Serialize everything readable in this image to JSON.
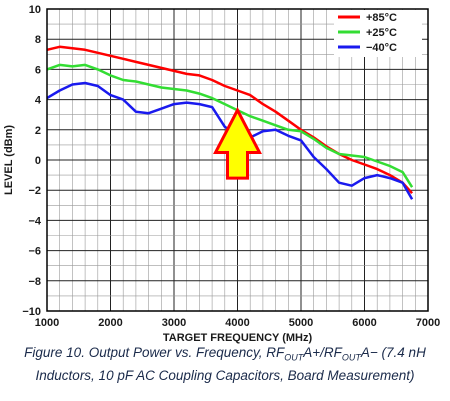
{
  "chart_data": {
    "type": "line",
    "xlabel": "TARGET FREQUENCY (MHz)",
    "ylabel": "LEVEL (dBm)",
    "xlim": [
      1000,
      7000
    ],
    "ylim": [
      -10,
      10
    ],
    "x_ticks": [
      "1000",
      "2000",
      "3000",
      "4000",
      "5000",
      "6000",
      "7000"
    ],
    "y_ticks": [
      "10",
      "8",
      "6",
      "4",
      "2",
      "0",
      "−2",
      "−4",
      "−6",
      "−8",
      "−10"
    ],
    "grid": true,
    "legend_position": "top-right",
    "annotation": "yellow arrow with red outline pointing up at ~4000 MHz",
    "series": [
      {
        "name": "+85°C",
        "color": "#ff0000",
        "x": [
          1000,
          1200,
          1400,
          1600,
          1800,
          2000,
          2200,
          2400,
          2600,
          2800,
          3000,
          3200,
          3400,
          3600,
          3800,
          4000,
          4200,
          4400,
          4600,
          4800,
          5000,
          5200,
          5400,
          5600,
          5800,
          6000,
          6200,
          6400,
          6600,
          6750
        ],
        "values": [
          7.3,
          7.5,
          7.4,
          7.3,
          7.1,
          6.9,
          6.7,
          6.5,
          6.3,
          6.1,
          5.9,
          5.7,
          5.6,
          5.3,
          4.9,
          4.6,
          4.3,
          3.7,
          3.2,
          2.6,
          2.0,
          1.5,
          0.9,
          0.4,
          0.0,
          -0.3,
          -0.6,
          -1.0,
          -1.5,
          -2.2
        ]
      },
      {
        "name": "+25°C",
        "color": "#33dd33",
        "x": [
          1000,
          1200,
          1400,
          1600,
          1800,
          2000,
          2200,
          2400,
          2600,
          2800,
          3000,
          3200,
          3400,
          3600,
          3800,
          4000,
          4200,
          4400,
          4600,
          4800,
          5000,
          5200,
          5400,
          5600,
          5800,
          6000,
          6200,
          6400,
          6600,
          6750
        ],
        "values": [
          6.0,
          6.3,
          6.2,
          6.3,
          6.0,
          5.6,
          5.3,
          5.2,
          5.0,
          4.8,
          4.7,
          4.6,
          4.4,
          4.1,
          3.7,
          3.3,
          2.9,
          2.6,
          2.3,
          2.0,
          1.9,
          1.4,
          0.8,
          0.4,
          0.3,
          0.2,
          -0.1,
          -0.4,
          -0.8,
          -1.8
        ]
      },
      {
        "name": "−40°C",
        "color": "#1a1aee",
        "x": [
          1000,
          1200,
          1400,
          1600,
          1800,
          2000,
          2200,
          2400,
          2600,
          2800,
          3000,
          3200,
          3400,
          3600,
          3800,
          4000,
          4200,
          4400,
          4600,
          4800,
          5000,
          5200,
          5400,
          5600,
          5800,
          6000,
          6200,
          6400,
          6600,
          6750
        ],
        "values": [
          4.1,
          4.6,
          5.0,
          5.1,
          4.9,
          4.3,
          4.0,
          3.2,
          3.1,
          3.4,
          3.7,
          3.8,
          3.7,
          3.5,
          2.2,
          1.6,
          1.5,
          1.9,
          2.0,
          1.6,
          1.3,
          0.2,
          -0.6,
          -1.5,
          -1.7,
          -1.2,
          -1.0,
          -1.2,
          -1.5,
          -2.6
        ]
      }
    ]
  },
  "caption": {
    "line1_prefix": "Figure 10. Output Power vs. Frequency, RF",
    "sub1": "OUT",
    "mid1": "A+/RF",
    "sub2": "OUT",
    "suffix1": "A− (7.4 nH",
    "line2": "Inductors, 10 pF AC Coupling Capacitors, Board Measurement)"
  }
}
